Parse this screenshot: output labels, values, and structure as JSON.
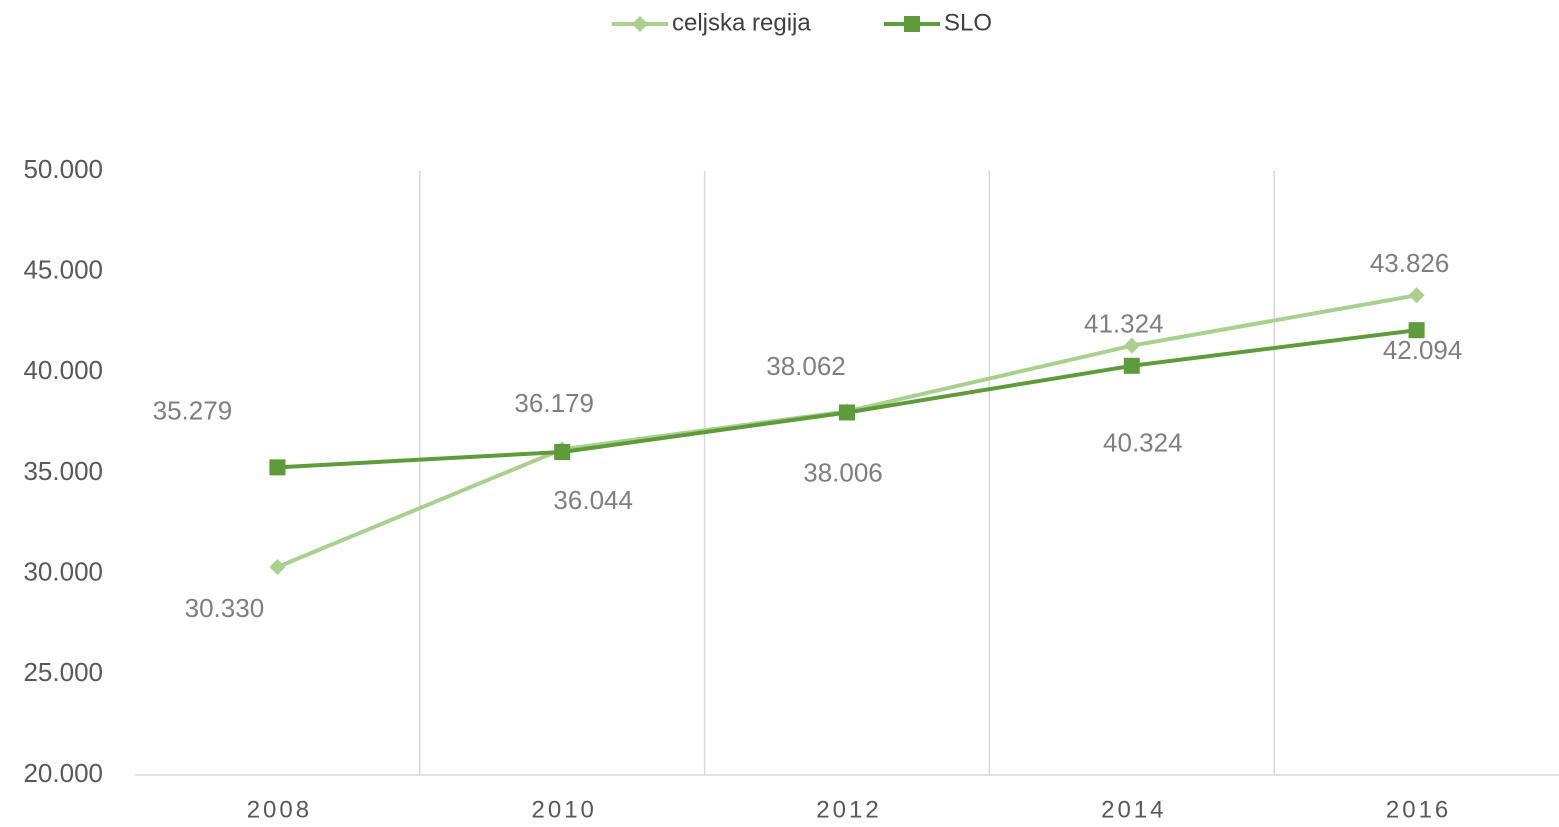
{
  "chart_data": {
    "type": "line",
    "categories": [
      "2008",
      "2010",
      "2012",
      "2014",
      "2016"
    ],
    "series": [
      {
        "name": "celjska regija",
        "color": "#a9d18e",
        "marker": "diamond",
        "values": [
          30330,
          36179,
          38062,
          41324,
          43826
        ],
        "value_labels": [
          "30.330",
          "36.179",
          "38.062",
          "41.324",
          "43.826"
        ]
      },
      {
        "name": "SLO",
        "color": "#5e9c3a",
        "marker": "square",
        "values": [
          35279,
          36044,
          38006,
          40324,
          42094
        ],
        "value_labels": [
          "35.279",
          "36.044",
          "38.006",
          "40.324",
          "42.094"
        ]
      }
    ],
    "ylim": [
      20000,
      50000
    ],
    "yticks": [
      {
        "value": 20000,
        "label": "20.000"
      },
      {
        "value": 25000,
        "label": "25.000"
      },
      {
        "value": 30000,
        "label": "30.000"
      },
      {
        "value": 35000,
        "label": "35.000"
      },
      {
        "value": 40000,
        "label": "40.000"
      },
      {
        "value": 45000,
        "label": "45.000"
      },
      {
        "value": 50000,
        "label": "50.000"
      }
    ],
    "legend": "top",
    "grid": false
  }
}
